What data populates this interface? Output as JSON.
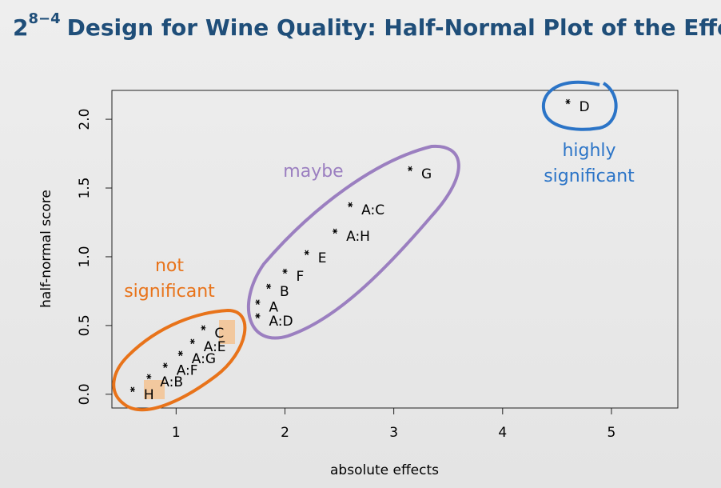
{
  "chart_data": {
    "type": "scatter",
    "title_base": "2",
    "title_exp": "8−4",
    "title": "Design for Wine Quality: Half-Normal Plot of the Effects",
    "xlabel": "absolute effects",
    "ylabel": "half-normal score",
    "labels": [
      "H",
      "A:B",
      "A:F",
      "A:G",
      "A:E",
      "C",
      "A:D",
      "A",
      "B",
      "F",
      "E",
      "A:H",
      "A:C",
      "G",
      "D"
    ],
    "x": [
      0.6,
      0.75,
      0.9,
      1.04,
      1.15,
      1.25,
      1.75,
      1.75,
      1.85,
      2.0,
      2.2,
      2.46,
      2.6,
      3.15,
      4.6
    ],
    "values": [
      0.035,
      0.128,
      0.21,
      0.297,
      0.384,
      0.483,
      0.57,
      0.67,
      0.785,
      0.895,
      1.03,
      1.186,
      1.378,
      1.64,
      2.128
    ],
    "color": "#000000",
    "xlim": [
      0.41,
      5.61
    ],
    "ylim": [
      -0.1,
      2.21
    ],
    "xticks": [
      1,
      2,
      3,
      4,
      5
    ],
    "yticks": [
      {
        "value": 0,
        "label": "0.0"
      },
      0.5,
      {
        "value": 1,
        "label": "1.0"
      },
      1.5,
      {
        "value": 2,
        "label": "2.0"
      }
    ],
    "annotations": [
      {
        "lines": [
          "maybe"
        ],
        "color": "#9b7fc0"
      },
      {
        "lines": [
          "not",
          "significant"
        ],
        "color": "#e8731a"
      },
      {
        "lines": [
          "highly",
          "significant"
        ],
        "color": "#2b74c7"
      }
    ]
  }
}
